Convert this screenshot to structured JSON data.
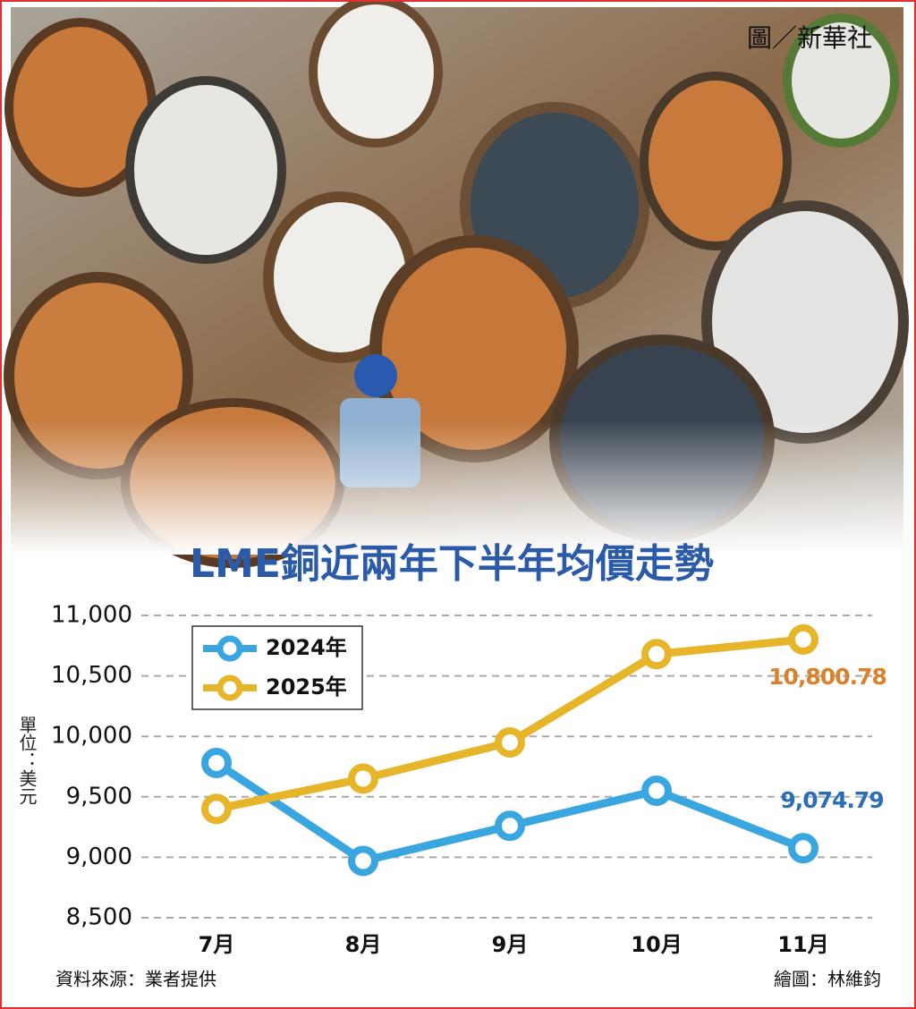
{
  "chart_data": {
    "type": "line",
    "photo_credit": "圖／新華社",
    "title": "LME銅近兩年下半年均價走勢",
    "y_axis_label": "單位：美元",
    "source": "資料來源：業者提供",
    "graphic_credit": "繪圖：林維鈞",
    "categories": [
      "7月",
      "8月",
      "9月",
      "10月",
      "11月"
    ],
    "series": [
      {
        "name": "2024年",
        "color": "#3aa6e0",
        "label_color": "#2a6fb5",
        "values": [
          9780,
          8970,
          9260,
          9550,
          9074.79
        ],
        "value_labels": [
          null,
          null,
          null,
          null,
          "9,074.79"
        ]
      },
      {
        "name": "2025年",
        "color": "#e6b52a",
        "label_color": "#d9822b",
        "values": [
          9400,
          9650,
          9950,
          10680,
          10800.78
        ],
        "value_labels": [
          null,
          null,
          null,
          null,
          "10,800.78"
        ]
      }
    ],
    "ylim": [
      8500,
      11000
    ],
    "yticks": [
      {
        "value": 8500,
        "label": "8,500"
      },
      {
        "value": 9000,
        "label": "9,000"
      },
      {
        "value": 9500,
        "label": "9,500"
      },
      {
        "value": 10000,
        "label": "10,000"
      },
      {
        "value": 10500,
        "label": "10,500"
      },
      {
        "value": 11000,
        "label": "11,000"
      }
    ],
    "grid": true,
    "legend": "upper left"
  }
}
